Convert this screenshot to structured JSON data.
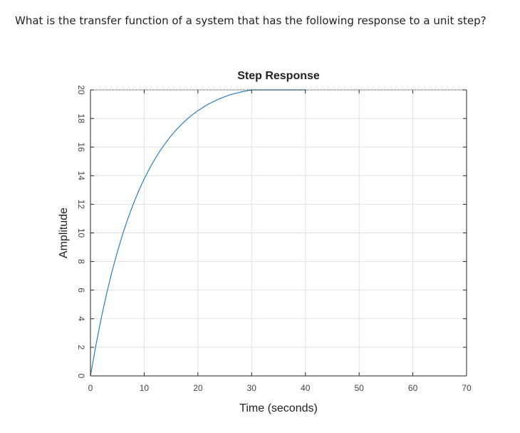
{
  "question": "What is the transfer function of a system that has the following response to a unit step?",
  "chart_data": {
    "type": "line",
    "title": "Step Response",
    "xlabel": "Time (seconds)",
    "ylabel": "Amplitude",
    "xlim": [
      0,
      70
    ],
    "ylim": [
      0,
      20
    ],
    "xticks": [
      0,
      10,
      20,
      30,
      40,
      50,
      60,
      70
    ],
    "yticks": [
      0,
      2,
      4,
      6,
      8,
      10,
      12,
      14,
      16,
      18,
      20
    ],
    "grid": true,
    "series": [
      {
        "color": "#2e7fb8",
        "x": [
          0,
          1,
          2,
          3,
          4,
          5,
          6,
          7,
          8,
          9,
          10,
          11,
          12,
          13,
          14,
          15,
          16,
          17,
          18,
          19,
          20,
          22,
          24,
          26,
          28,
          30,
          32,
          34,
          36,
          38,
          40
        ],
        "y": [
          0,
          2.12,
          4.03,
          5.75,
          7.29,
          8.67,
          9.92,
          11.04,
          12.05,
          12.96,
          13.78,
          14.51,
          15.17,
          15.77,
          16.3,
          16.79,
          17.22,
          17.61,
          17.96,
          18.27,
          18.55,
          19.02,
          19.38,
          19.66,
          19.85,
          20.0,
          20.0,
          20.0,
          20.0,
          20.0,
          20.0
        ]
      }
    ],
    "dotted_top_boundary_from_x": 0,
    "axes_color": "#262626",
    "grid_color": "#e1e1e1"
  }
}
